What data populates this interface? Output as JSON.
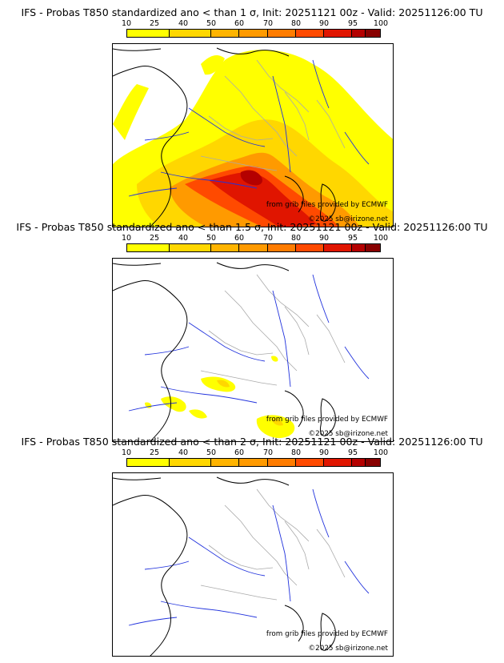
{
  "panels": [
    {
      "title": "IFS - Probas T850  standardized ano < than 1 σ, Init: 20251121 00z - Valid: 20251126:00 TU",
      "intensity": "high"
    },
    {
      "title": "IFS - Probas T850  standardized ano < than 1.5 σ, Init: 20251121 00z - Valid: 20251126:00 TU",
      "intensity": "low"
    },
    {
      "title": "IFS - Probas T850  standardized ano < than 2 σ, Init: 20251121 00z - Valid: 20251126:00 TU",
      "intensity": "none"
    }
  ],
  "legend": {
    "ticks": [
      "10",
      "25",
      "40",
      "50",
      "60",
      "70",
      "80",
      "90",
      "95",
      "100"
    ],
    "colors": [
      "#ffff00",
      "#ffd700",
      "#ffb400",
      "#ff9a00",
      "#ff7c00",
      "#ff4a00",
      "#e01500",
      "#b40000",
      "#880000"
    ]
  },
  "credits": {
    "source": "from grib files provided by ECMWF",
    "copyright": "©2025 sb@irizone.net"
  },
  "colors": {
    "coast": "#000000",
    "river": "#2233dd",
    "border": "#aaaaaa"
  }
}
